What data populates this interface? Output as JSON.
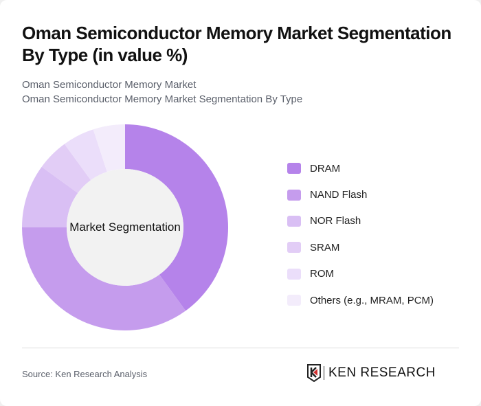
{
  "header": {
    "title": "Oman Semiconductor Memory Market Segmentation By Type (in value %)",
    "subtitle_line1": "Oman Semiconductor Memory Market",
    "subtitle_line2": "Oman Semiconductor Memory Market Segmentation By Type"
  },
  "chart_data": {
    "type": "pie",
    "variant": "donut",
    "title": "Oman Semiconductor Memory Market Segmentation By Type (in value %)",
    "center_label": "Market Segmentation",
    "categories": [
      "DRAM",
      "NAND Flash",
      "NOR Flash",
      "SRAM",
      "ROM",
      "Others (e.g., MRAM, PCM)"
    ],
    "values": [
      40,
      35,
      10,
      5,
      5,
      5
    ],
    "colors": [
      "#b583ea",
      "#c59ced",
      "#d9bff4",
      "#e2cdf6",
      "#ebdefa",
      "#f3ecfb"
    ],
    "legend_position": "right",
    "start_angle": "top, clockwise"
  },
  "legend": {
    "items": [
      {
        "label": "DRAM",
        "color": "#b583ea"
      },
      {
        "label": "NAND Flash",
        "color": "#c59ced"
      },
      {
        "label": "NOR Flash",
        "color": "#d9bff4"
      },
      {
        "label": "SRAM",
        "color": "#e2cdf6"
      },
      {
        "label": "ROM",
        "color": "#ebdefa"
      },
      {
        "label": "Others (e.g., MRAM, PCM)",
        "color": "#f3ecfb"
      }
    ]
  },
  "footer": {
    "source": "Source: Ken Research Analysis",
    "logo_text": "KEN RESEARCH"
  }
}
